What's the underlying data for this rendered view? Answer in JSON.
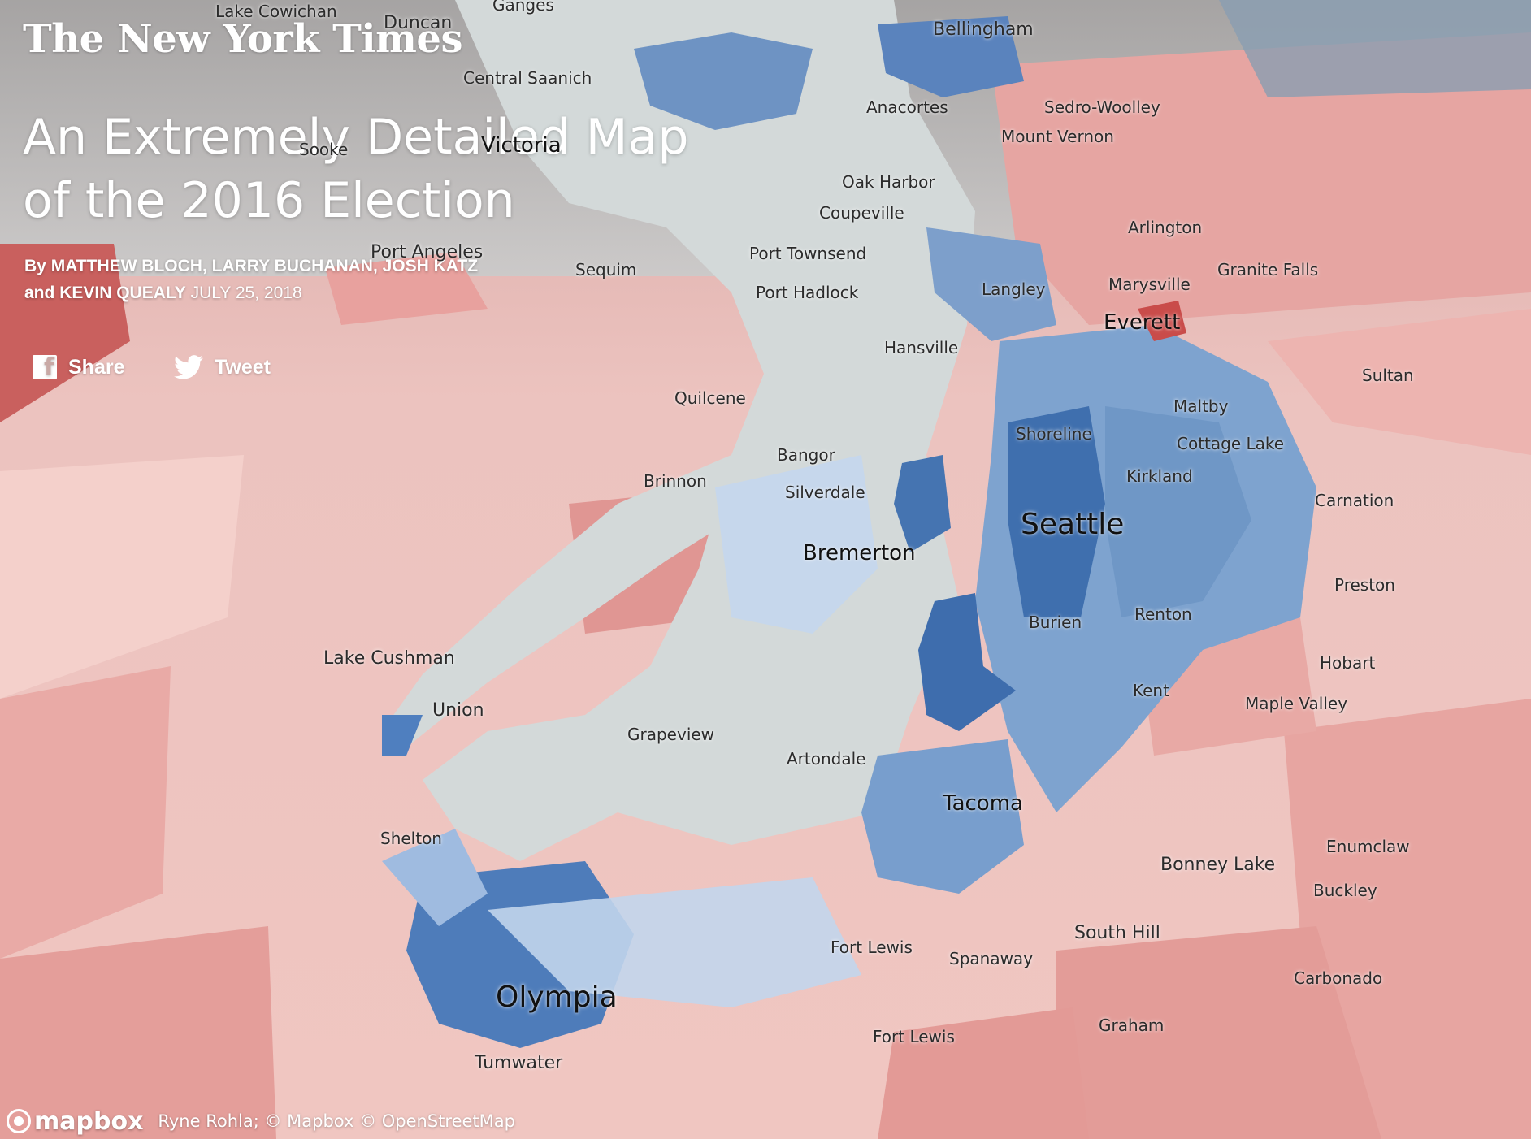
{
  "masthead": "The New York Times",
  "headline": {
    "line1": "An Extremely Detailed Map",
    "line2": "of the 2016 Election"
  },
  "byline": {
    "by": "By",
    "authors_line1": "MATTHEW BLOCH, LARRY BUCHANAN, JOSH KATZ",
    "and": "and",
    "authors_line2": "KEVIN QUEALY",
    "date": "JULY 25, 2018"
  },
  "share": {
    "facebook_label": "Share",
    "twitter_label": "Tweet",
    "facebook_icon": "facebook-icon",
    "twitter_icon": "twitter-icon"
  },
  "attribution": {
    "logo": "mapbox",
    "text": "Ryne Rohla; © Mapbox © OpenStreetMap"
  },
  "colors": {
    "republican": "#e49a98",
    "republican_light": "#f2c4c0",
    "democrat": "#4f7fbf",
    "democrat_light": "#c7d9ee",
    "water": "#d5dbdb",
    "sky_top": "#9aa0a0"
  },
  "places": [
    {
      "name": "Lake Cowichan"
    },
    {
      "name": "Duncan"
    },
    {
      "name": "Ganges"
    },
    {
      "name": "Bellingham"
    },
    {
      "name": "Central Saanich"
    },
    {
      "name": "Anacortes"
    },
    {
      "name": "Sedro-Woolley"
    },
    {
      "name": "Sooke"
    },
    {
      "name": "Victoria"
    },
    {
      "name": "Mount Vernon"
    },
    {
      "name": "Oak Harbor"
    },
    {
      "name": "Coupeville"
    },
    {
      "name": "Arlington"
    },
    {
      "name": "Port Angeles"
    },
    {
      "name": "Sequim"
    },
    {
      "name": "Port Townsend"
    },
    {
      "name": "Granite Falls"
    },
    {
      "name": "Langley"
    },
    {
      "name": "Marysville"
    },
    {
      "name": "Port Hadlock"
    },
    {
      "name": "Everett"
    },
    {
      "name": "Hansville"
    },
    {
      "name": "Sultan"
    },
    {
      "name": "Quilcene"
    },
    {
      "name": "Maltby"
    },
    {
      "name": "Shoreline"
    },
    {
      "name": "Cottage Lake"
    },
    {
      "name": "Bangor"
    },
    {
      "name": "Kirkland"
    },
    {
      "name": "Brinnon"
    },
    {
      "name": "Silverdale"
    },
    {
      "name": "Carnation"
    },
    {
      "name": "Seattle"
    },
    {
      "name": "Bremerton"
    },
    {
      "name": "Preston"
    },
    {
      "name": "Burien"
    },
    {
      "name": "Renton"
    },
    {
      "name": "Lake Cushman"
    },
    {
      "name": "Hobart"
    },
    {
      "name": "Kent"
    },
    {
      "name": "Maple Valley"
    },
    {
      "name": "Union"
    },
    {
      "name": "Grapeview"
    },
    {
      "name": "Artondale"
    },
    {
      "name": "Tacoma"
    },
    {
      "name": "Shelton"
    },
    {
      "name": "Enumclaw"
    },
    {
      "name": "Bonney Lake"
    },
    {
      "name": "Buckley"
    },
    {
      "name": "South Hill"
    },
    {
      "name": "Fort Lewis"
    },
    {
      "name": "Spanaway"
    },
    {
      "name": "Carbonado"
    },
    {
      "name": "Olympia"
    },
    {
      "name": "Graham"
    },
    {
      "name": "Fort Lewis"
    },
    {
      "name": "Tumwater"
    }
  ]
}
